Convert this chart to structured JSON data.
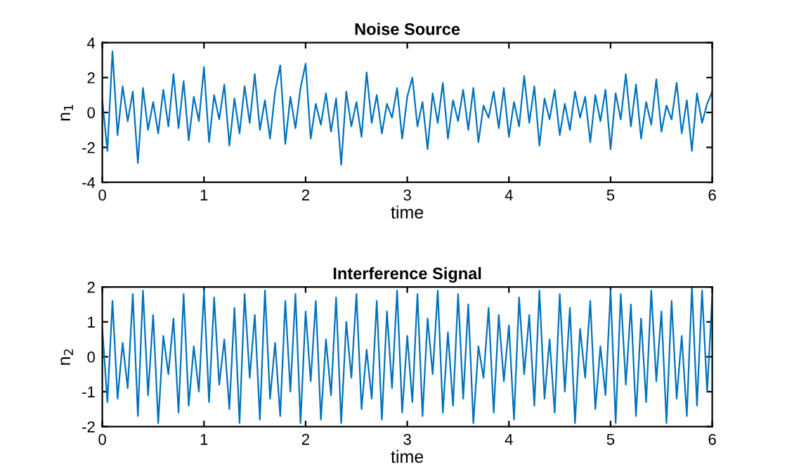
{
  "chart_data": [
    {
      "type": "line",
      "title": "Noise Source",
      "xlabel": "time",
      "ylabel": "n$_{1}$",
      "xlim": [
        0,
        6
      ],
      "xticks": [
        0,
        1,
        2,
        3,
        4,
        5,
        6
      ],
      "ylim": [
        -4,
        4
      ],
      "yticks": [
        -4,
        -2,
        0,
        2,
        4
      ],
      "grid": false,
      "legend": false,
      "marker": "none",
      "line_style": "solid",
      "series": [
        {
          "color": "#0072bd",
          "x": [
            0,
            0.05,
            0.1,
            0.15,
            0.2,
            0.25,
            0.3,
            0.35,
            0.4,
            0.45,
            0.5,
            0.55,
            0.6,
            0.65,
            0.7,
            0.75,
            0.8,
            0.85,
            0.9,
            0.95,
            1.0,
            1.05,
            1.1,
            1.15,
            1.2,
            1.25,
            1.3,
            1.35,
            1.4,
            1.45,
            1.5,
            1.55,
            1.6,
            1.65,
            1.7,
            1.75,
            1.8,
            1.85,
            1.9,
            1.95,
            2.0,
            2.05,
            2.1,
            2.15,
            2.2,
            2.25,
            2.3,
            2.35,
            2.4,
            2.45,
            2.5,
            2.55,
            2.6,
            2.65,
            2.7,
            2.75,
            2.8,
            2.85,
            2.9,
            2.95,
            3.0,
            3.05,
            3.1,
            3.15,
            3.2,
            3.25,
            3.3,
            3.35,
            3.4,
            3.45,
            3.5,
            3.55,
            3.6,
            3.65,
            3.7,
            3.75,
            3.8,
            3.85,
            3.9,
            3.95,
            4.0,
            4.05,
            4.1,
            4.15,
            4.2,
            4.25,
            4.3,
            4.35,
            4.4,
            4.45,
            4.5,
            4.55,
            4.6,
            4.65,
            4.7,
            4.75,
            4.8,
            4.85,
            4.9,
            4.95,
            5.0,
            5.05,
            5.1,
            5.15,
            5.2,
            5.25,
            5.3,
            5.35,
            5.4,
            5.45,
            5.5,
            5.55,
            5.6,
            5.65,
            5.7,
            5.75,
            5.8,
            5.85,
            5.9,
            5.95,
            6.0
          ],
          "values": [
            0.7,
            -2.2,
            3.5,
            -1.3,
            1.5,
            -0.5,
            1.2,
            -2.9,
            1.4,
            -1.0,
            0.6,
            -1.2,
            1.3,
            -0.8,
            2.2,
            -0.9,
            1.8,
            -1.6,
            0.9,
            -0.5,
            2.6,
            -1.7,
            1.0,
            -0.4,
            1.6,
            -1.9,
            0.8,
            -1.2,
            1.5,
            -0.6,
            2.2,
            -1.0,
            0.7,
            -1.5,
            1.2,
            2.7,
            -1.8,
            0.9,
            -0.9,
            1.4,
            2.8,
            -1.5,
            0.5,
            -0.7,
            1.1,
            -1.1,
            0.8,
            -3.0,
            1.2,
            -0.8,
            0.6,
            -1.4,
            2.3,
            -0.6,
            1.0,
            -1.2,
            0.5,
            -0.3,
            1.4,
            -1.5,
            0.9,
            2.0,
            -0.8,
            0.6,
            -2.1,
            1.1,
            -0.6,
            1.7,
            -1.5,
            0.7,
            -0.5,
            1.3,
            -1.0,
            1.4,
            -1.7,
            0.4,
            -0.3,
            1.2,
            -0.9,
            1.4,
            -1.4,
            0.6,
            -0.8,
            2.1,
            -0.6,
            1.5,
            -1.9,
            0.8,
            -0.4,
            1.3,
            -1.3,
            0.5,
            -1.0,
            1.2,
            -0.3,
            0.9,
            -1.7,
            1.0,
            -0.5,
            1.3,
            -2.1,
            1.1,
            -0.4,
            2.2,
            -0.8,
            1.6,
            -1.5,
            0.6,
            -0.7,
            1.9,
            -1.1,
            0.4,
            -0.4,
            1.7,
            -1.2,
            0.7,
            -2.2,
            1.1,
            -0.6,
            0.5,
            1.2
          ]
        }
      ]
    },
    {
      "type": "line",
      "title": "Interference Signal",
      "xlabel": "time",
      "ylabel": "n$_{2}$",
      "xlim": [
        0,
        6
      ],
      "xticks": [
        0,
        1,
        2,
        3,
        4,
        5,
        6
      ],
      "ylim": [
        -2,
        2
      ],
      "yticks": [
        -2,
        -1,
        0,
        1,
        2
      ],
      "grid": false,
      "legend": false,
      "marker": "none",
      "line_style": "solid",
      "series": [
        {
          "color": "#0072bd",
          "x": [
            0,
            0.05,
            0.1,
            0.15,
            0.2,
            0.25,
            0.3,
            0.35,
            0.4,
            0.45,
            0.5,
            0.55,
            0.6,
            0.65,
            0.7,
            0.75,
            0.8,
            0.85,
            0.9,
            0.95,
            1.0,
            1.05,
            1.1,
            1.15,
            1.2,
            1.25,
            1.3,
            1.35,
            1.4,
            1.45,
            1.5,
            1.55,
            1.6,
            1.65,
            1.7,
            1.75,
            1.8,
            1.85,
            1.9,
            1.95,
            2.0,
            2.05,
            2.1,
            2.15,
            2.2,
            2.25,
            2.3,
            2.35,
            2.4,
            2.45,
            2.5,
            2.55,
            2.6,
            2.65,
            2.7,
            2.75,
            2.8,
            2.85,
            2.9,
            2.95,
            3.0,
            3.05,
            3.1,
            3.15,
            3.2,
            3.25,
            3.3,
            3.35,
            3.4,
            3.45,
            3.5,
            3.55,
            3.6,
            3.65,
            3.7,
            3.75,
            3.8,
            3.85,
            3.9,
            3.95,
            4.0,
            4.05,
            4.1,
            4.15,
            4.2,
            4.25,
            4.3,
            4.35,
            4.4,
            4.45,
            4.5,
            4.55,
            4.6,
            4.65,
            4.7,
            4.75,
            4.8,
            4.85,
            4.9,
            4.95,
            5.0,
            5.05,
            5.1,
            5.15,
            5.2,
            5.25,
            5.3,
            5.35,
            5.4,
            5.45,
            5.5,
            5.55,
            5.6,
            5.65,
            5.7,
            5.75,
            5.8,
            5.85,
            5.9,
            5.95,
            6.0
          ],
          "values": [
            0.8,
            -1.3,
            1.6,
            -1.2,
            0.4,
            -0.9,
            1.8,
            -1.7,
            1.9,
            -1.1,
            1.2,
            -1.9,
            0.6,
            -0.5,
            1.1,
            -1.6,
            1.8,
            -1.4,
            0.3,
            -1.0,
            1.9,
            -1.3,
            1.7,
            -0.8,
            0.5,
            -1.5,
            1.4,
            -1.9,
            1.8,
            -0.6,
            1.2,
            -1.8,
            1.9,
            -1.2,
            0.4,
            -1.7,
            1.6,
            -1.0,
            1.8,
            -1.9,
            1.3,
            -0.7,
            1.6,
            -1.8,
            0.5,
            -1.1,
            1.7,
            -1.9,
            1.0,
            -0.6,
            1.8,
            -1.5,
            0.2,
            -1.2,
            1.6,
            -1.8,
            1.3,
            -0.9,
            1.9,
            -1.6,
            0.6,
            -1.3,
            1.8,
            -1.7,
            1.1,
            -0.5,
            1.9,
            -1.6,
            0.7,
            -1.4,
            1.8,
            -1.2,
            1.5,
            -1.9,
            0.3,
            -0.6,
            1.4,
            -1.6,
            1.2,
            -0.7,
            0.9,
            -1.8,
            1.7,
            -0.5,
            1.2,
            -1.4,
            1.9,
            -1.2,
            0.5,
            -1.6,
            1.8,
            -1.0,
            1.4,
            -1.9,
            0.8,
            -0.6,
            1.6,
            -1.5,
            0.3,
            -1.1,
            1.9,
            -1.9,
            1.8,
            -0.8,
            1.5,
            -1.7,
            1.1,
            -1.3,
            1.9,
            -0.7,
            1.3,
            -1.9,
            1.6,
            -1.2,
            0.6,
            -1.7,
            2.0,
            -1.4,
            1.9,
            -1.0,
            1.7
          ]
        }
      ]
    }
  ]
}
